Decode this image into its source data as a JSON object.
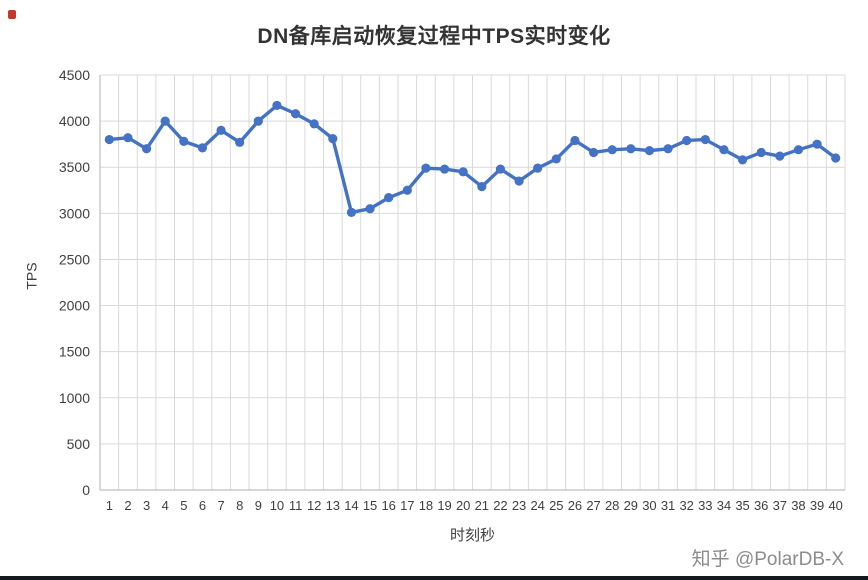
{
  "title": "DN备库启动恢复过程中TPS实时变化",
  "watermark": "知乎 @PolarDB-X",
  "colors": {
    "line": "#4472C4",
    "grid": "#D9D9D9",
    "axis": "#BFBFBF",
    "tick_text": "#404040",
    "title_text": "#333333",
    "watermark_text": "#8C8C8C"
  },
  "chart_data": {
    "type": "line",
    "title": "DN备库启动恢复过程中TPS实时变化",
    "xlabel": "时刻秒",
    "ylabel": "TPS",
    "x": [
      1,
      2,
      3,
      4,
      5,
      6,
      7,
      8,
      9,
      10,
      11,
      12,
      13,
      14,
      15,
      16,
      17,
      18,
      19,
      20,
      21,
      22,
      23,
      24,
      25,
      26,
      27,
      28,
      29,
      30,
      31,
      32,
      33,
      34,
      35,
      36,
      37,
      38,
      39,
      40
    ],
    "values": [
      3800,
      3820,
      3700,
      4000,
      3780,
      3710,
      3900,
      3770,
      4000,
      4170,
      4080,
      3970,
      3810,
      3010,
      3050,
      3170,
      3250,
      3490,
      3480,
      3450,
      3290,
      3480,
      3350,
      3490,
      3590,
      3790,
      3660,
      3690,
      3700,
      3680,
      3700,
      3790,
      3800,
      3690,
      3580,
      3660,
      3620,
      3690,
      3750,
      3600
    ],
    "ylim": [
      0,
      4500
    ],
    "ytick_step": 500,
    "grid": true,
    "legend": "none",
    "marker": "circle"
  }
}
